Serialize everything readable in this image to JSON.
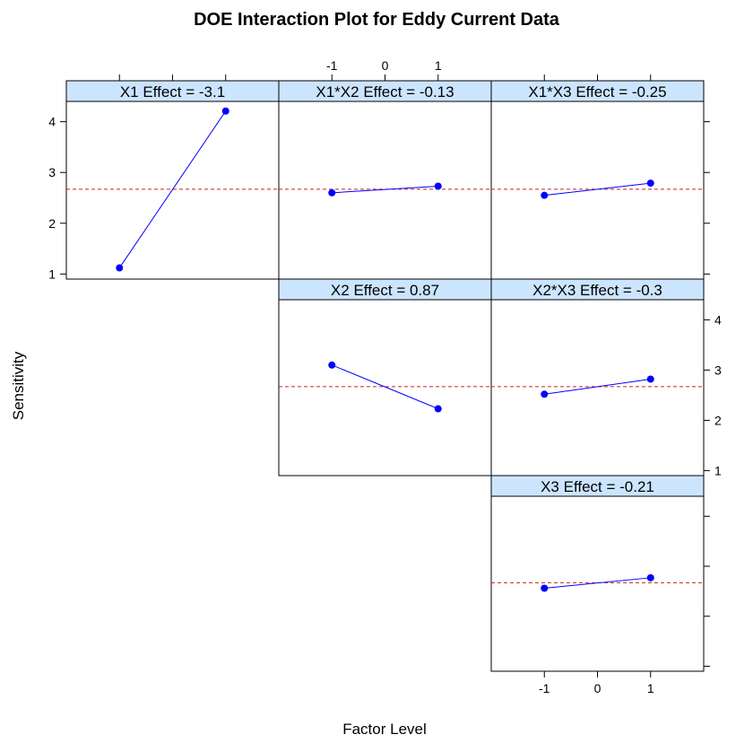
{
  "chart_data": {
    "type": "line",
    "title": "DOE Interaction Plot for Eddy Current Data",
    "xlabel": "Factor Level",
    "ylabel": "Sensitivity",
    "x_ticks": [
      -1,
      0,
      1
    ],
    "y_ticks": [
      1,
      2,
      3,
      4
    ],
    "xlim": [
      -2,
      2
    ],
    "ylim": [
      0.9,
      4.4
    ],
    "grand_mean": 2.67,
    "colors": {
      "strip": "#cce5ff",
      "series": "#0000ff",
      "mean_line": "#cc2222"
    },
    "panels": [
      {
        "label": "X1 Effect = -3.1",
        "x": [
          -1,
          1
        ],
        "y": [
          1.12,
          4.21
        ]
      },
      {
        "label": "X1*X2 Effect = -0.13",
        "x": [
          -1,
          1
        ],
        "y": [
          2.6,
          2.73
        ]
      },
      {
        "label": "X1*X3 Effect = -0.25",
        "x": [
          -1,
          1
        ],
        "y": [
          2.55,
          2.79
        ]
      },
      {
        "label": "X2 Effect = 0.87",
        "x": [
          -1,
          1
        ],
        "y": [
          3.1,
          2.23
        ]
      },
      {
        "label": "X2*X3 Effect = -0.3",
        "x": [
          -1,
          1
        ],
        "y": [
          2.52,
          2.82
        ]
      },
      {
        "label": "X3 Effect = -0.21",
        "x": [
          -1,
          1
        ],
        "y": [
          2.56,
          2.77
        ]
      }
    ]
  }
}
